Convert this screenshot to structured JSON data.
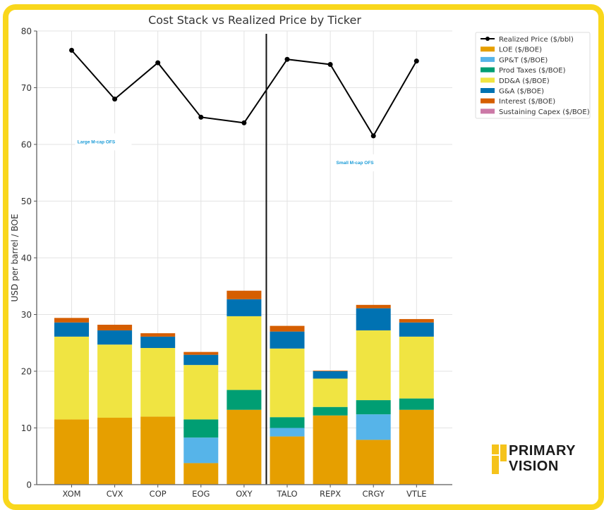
{
  "chart_data": {
    "type": "bar",
    "stacked": true,
    "title": "Cost Stack vs Realized Price by Ticker",
    "xlabel": "",
    "ylabel": "USD per barrel / BOE",
    "ylim": [
      0,
      80
    ],
    "yticks": [
      0,
      10,
      20,
      30,
      40,
      50,
      60,
      70,
      80
    ],
    "grid": true,
    "legend_position": "top-right-outside",
    "categories": [
      "XOM",
      "CVX",
      "COP",
      "EOG",
      "OXY",
      "TALO",
      "REPX",
      "CRGY",
      "VTLE"
    ],
    "series": [
      {
        "name": "LOE ($/BOE)",
        "color": "#e69f00",
        "values": [
          11.5,
          11.8,
          12.0,
          3.8,
          13.2,
          8.5,
          12.2,
          7.9,
          13.2
        ]
      },
      {
        "name": "GP&T ($/BOE)",
        "color": "#56b4e9",
        "values": [
          0,
          0,
          0,
          4.5,
          0,
          1.5,
          0,
          4.5,
          0
        ]
      },
      {
        "name": "Prod Taxes ($/BOE)",
        "color": "#009e73",
        "values": [
          0,
          0,
          0,
          3.2,
          3.5,
          1.9,
          1.5,
          2.5,
          2.0
        ]
      },
      {
        "name": "DD&A ($/BOE)",
        "color": "#f0e442",
        "values": [
          14.6,
          12.9,
          12.1,
          9.6,
          13.0,
          12.1,
          5.0,
          12.3,
          10.9
        ]
      },
      {
        "name": "G&A ($/BOE)",
        "color": "#0072b2",
        "values": [
          2.5,
          2.5,
          2.0,
          1.8,
          3.0,
          3.0,
          1.3,
          3.9,
          2.5
        ]
      },
      {
        "name": "Interest ($/BOE)",
        "color": "#d55e00",
        "values": [
          0.8,
          1.0,
          0.6,
          0.5,
          1.5,
          1.0,
          0.1,
          0.6,
          0.6
        ]
      },
      {
        "name": "Sustaining Capex ($/BOE)",
        "color": "#cc79a7",
        "values": [
          0,
          0,
          0,
          0,
          0,
          0,
          0,
          0,
          0
        ]
      }
    ],
    "line_series": {
      "name": "Realized Price ($/bbl)",
      "color": "#000000",
      "values": [
        76.6,
        68.0,
        74.4,
        64.8,
        63.8,
        75.0,
        74.1,
        61.5,
        74.7
      ]
    },
    "divider_after_category": "OXY",
    "annotations": [
      {
        "text": "Large M-cap OFS",
        "x_category": "XOM",
        "y": 60.2,
        "color": "#1a9bd7"
      },
      {
        "text": "Small M-cap OFS",
        "x_category": "REPX",
        "y": 56.5,
        "color": "#1a9bd7"
      }
    ]
  },
  "branding": {
    "line1": "PRIMARY",
    "line2": "VISION",
    "frame_color": "#f9d71c"
  }
}
